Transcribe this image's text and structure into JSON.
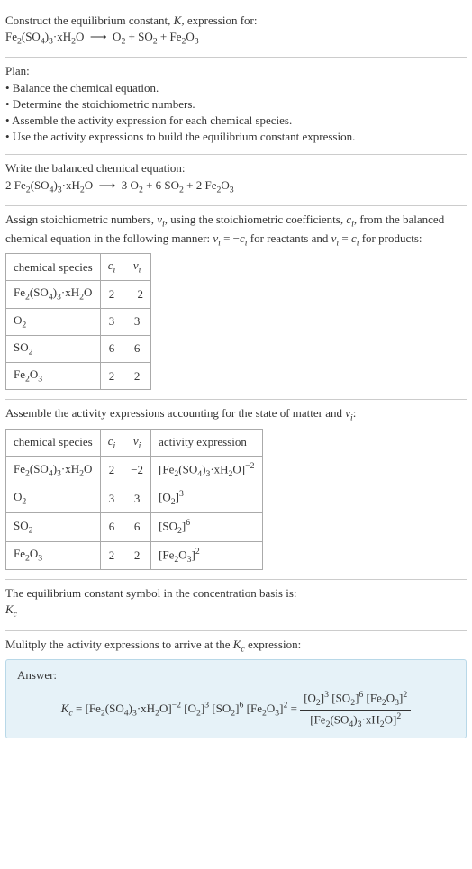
{
  "header": {
    "line1": "Construct the equilibrium constant, <span class=\"italic\">K</span>, expression for:",
    "equation": "Fe<sub>2</sub>(SO<sub>4</sub>)<sub>3</sub>·xH<sub>2</sub>O &nbsp;⟶&nbsp; O<sub>2</sub> + SO<sub>2</sub> + Fe<sub>2</sub>O<sub>3</sub>"
  },
  "plan": {
    "title": "Plan:",
    "items": [
      "• Balance the chemical equation.",
      "• Determine the stoichiometric numbers.",
      "• Assemble the activity expression for each chemical species.",
      "• Use the activity expressions to build the equilibrium constant expression."
    ]
  },
  "balanced": {
    "title": "Write the balanced chemical equation:",
    "equation": "2 Fe<sub>2</sub>(SO<sub>4</sub>)<sub>3</sub>·xH<sub>2</sub>O &nbsp;⟶&nbsp; 3 O<sub>2</sub> + 6 SO<sub>2</sub> + 2 Fe<sub>2</sub>O<sub>3</sub>"
  },
  "stoich": {
    "intro": "Assign stoichiometric numbers, <span class=\"italic\">ν<sub>i</sub></span>, using the stoichiometric coefficients, <span class=\"italic\">c<sub>i</sub></span>, from the balanced chemical equation in the following manner: <span class=\"italic\">ν<sub>i</sub></span> = −<span class=\"italic\">c<sub>i</sub></span> for reactants and <span class=\"italic\">ν<sub>i</sub></span> = <span class=\"italic\">c<sub>i</sub></span> for products:",
    "headers": [
      "chemical species",
      "<span class=\"italic\">c<sub>i</sub></span>",
      "<span class=\"italic\">ν<sub>i</sub></span>"
    ],
    "rows": [
      [
        "Fe<sub>2</sub>(SO<sub>4</sub>)<sub>3</sub>·xH<sub>2</sub>O",
        "2",
        "−2"
      ],
      [
        "O<sub>2</sub>",
        "3",
        "3"
      ],
      [
        "SO<sub>2</sub>",
        "6",
        "6"
      ],
      [
        "Fe<sub>2</sub>O<sub>3</sub>",
        "2",
        "2"
      ]
    ]
  },
  "activity": {
    "intro": "Assemble the activity expressions accounting for the state of matter and <span class=\"italic\">ν<sub>i</sub></span>:",
    "headers": [
      "chemical species",
      "<span class=\"italic\">c<sub>i</sub></span>",
      "<span class=\"italic\">ν<sub>i</sub></span>",
      "activity expression"
    ],
    "rows": [
      [
        "Fe<sub>2</sub>(SO<sub>4</sub>)<sub>3</sub>·xH<sub>2</sub>O",
        "2",
        "−2",
        "[Fe<sub>2</sub>(SO<sub>4</sub>)<sub>3</sub>·xH<sub>2</sub>O]<sup>−2</sup>"
      ],
      [
        "O<sub>2</sub>",
        "3",
        "3",
        "[O<sub>2</sub>]<sup>3</sup>"
      ],
      [
        "SO<sub>2</sub>",
        "6",
        "6",
        "[SO<sub>2</sub>]<sup>6</sup>"
      ],
      [
        "Fe<sub>2</sub>O<sub>3</sub>",
        "2",
        "2",
        "[Fe<sub>2</sub>O<sub>3</sub>]<sup>2</sup>"
      ]
    ]
  },
  "symbol": {
    "line1": "The equilibrium constant symbol in the concentration basis is:",
    "line2": "<span class=\"italic\">K<sub>c</sub></span>"
  },
  "multiply": {
    "title": "Mulitply the activity expressions to arrive at the <span class=\"italic\">K<sub>c</sub></span> expression:"
  },
  "answer": {
    "label": "Answer:",
    "lhs": "<span class=\"italic\">K<sub>c</sub></span> = [Fe<sub>2</sub>(SO<sub>4</sub>)<sub>3</sub>·xH<sub>2</sub>O]<sup>−2</sup> [O<sub>2</sub>]<sup>3</sup> [SO<sub>2</sub>]<sup>6</sup> [Fe<sub>2</sub>O<sub>3</sub>]<sup>2</sup> = ",
    "num": "[O<sub>2</sub>]<sup>3</sup> [SO<sub>2</sub>]<sup>6</sup> [Fe<sub>2</sub>O<sub>3</sub>]<sup>2</sup>",
    "den": "[Fe<sub>2</sub>(SO<sub>4</sub>)<sub>3</sub>·xH<sub>2</sub>O]<sup>2</sup>"
  },
  "colors": {
    "text": "#333333",
    "border": "#cccccc",
    "table_border": "#aaaaaa",
    "answer_bg": "#e6f2f8",
    "answer_border": "#b8d8e8"
  },
  "fontsize": 13
}
